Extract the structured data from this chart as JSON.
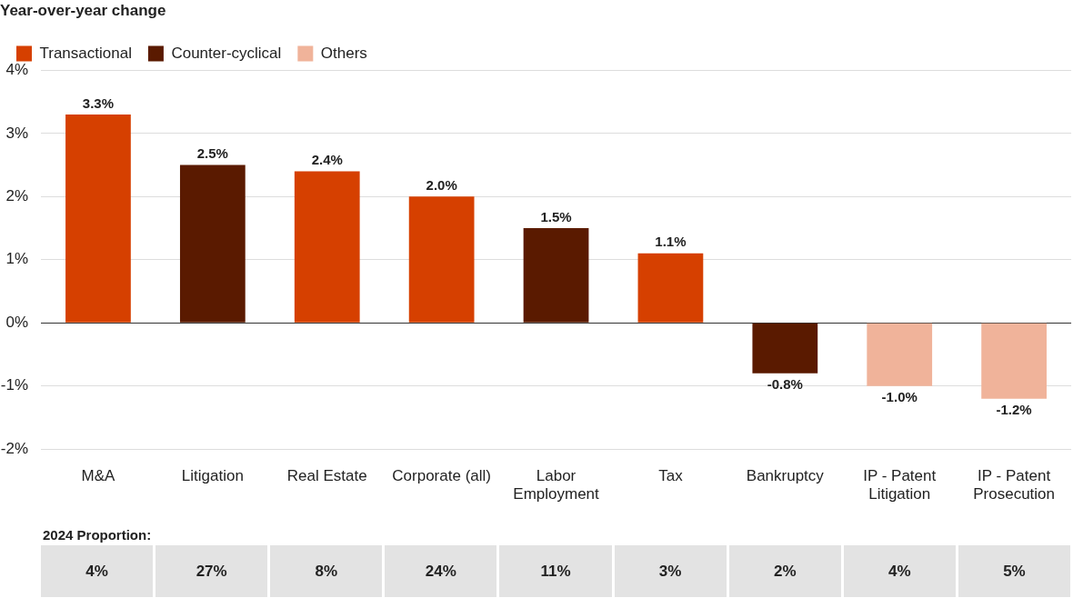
{
  "chart_data": [
    {
      "type": "bar",
      "title": "Year-over-year change",
      "categories": [
        "M&A",
        "Litigation",
        "Real Estate",
        "Corporate (all)",
        "Labor Employment",
        "Tax",
        "Bankruptcy",
        "IP - Patent Litigation",
        "IP - Patent Prosecution"
      ],
      "series": [
        {
          "name": "Transactional",
          "color": "#d64000",
          "values": [
            3.3,
            null,
            2.4,
            2.0,
            null,
            1.1,
            null,
            null,
            null
          ],
          "value_labels": [
            "3.3%",
            null,
            "2.4%",
            "2.0%",
            null,
            "1.1%",
            null,
            null,
            null
          ]
        },
        {
          "name": "Counter-cyclical",
          "color": "#5a1a00",
          "values": [
            null,
            2.5,
            null,
            null,
            1.5,
            null,
            -0.8,
            null,
            null
          ],
          "value_labels": [
            null,
            "2.5%",
            null,
            null,
            "1.5%",
            null,
            "-0.8%",
            null,
            null
          ]
        },
        {
          "name": "Others",
          "color": "#f0b39a",
          "values": [
            null,
            null,
            null,
            null,
            null,
            null,
            null,
            -1.0,
            -1.2
          ],
          "value_labels": [
            null,
            null,
            null,
            null,
            null,
            null,
            null,
            "-1.0%",
            "-1.2%"
          ]
        }
      ],
      "ylim": [
        -2,
        4
      ],
      "yticks": [
        {
          "value": -2,
          "label": "-2%"
        },
        {
          "value": -1,
          "label": "-1%"
        },
        {
          "value": 0,
          "label": "0%"
        },
        {
          "value": 1,
          "label": "1%"
        },
        {
          "value": 2,
          "label": "2%"
        },
        {
          "value": 3,
          "label": "3%"
        },
        {
          "value": 4,
          "label": "4%"
        }
      ],
      "grid": "y",
      "legend": "top left"
    },
    {
      "type": "other",
      "title": "2024 Proportion:",
      "categories": [
        null,
        null,
        null,
        null,
        null,
        null,
        null,
        null,
        null
      ],
      "value_labels": [
        "4%",
        "27%",
        "8%",
        "24%",
        "11%",
        "3%",
        "2%",
        "4%",
        "5%"
      ]
    }
  ]
}
